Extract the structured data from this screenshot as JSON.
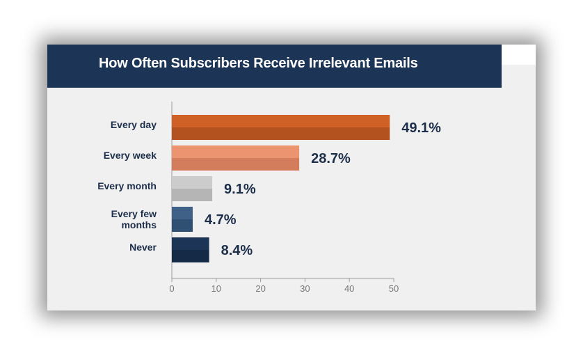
{
  "chart_data": {
    "type": "bar",
    "orientation": "horizontal",
    "title": "How Often Subscribers Receive Irrelevant Emails",
    "categories": [
      {
        "lines": [
          "Every day"
        ]
      },
      {
        "lines": [
          "Every week"
        ]
      },
      {
        "lines": [
          "Every month"
        ]
      },
      {
        "lines": [
          "Every few",
          "months"
        ]
      },
      {
        "lines": [
          "Never"
        ]
      }
    ],
    "values": [
      49.1,
      28.7,
      9.1,
      4.7,
      8.4
    ],
    "value_labels": [
      "49.1%",
      "28.7%",
      "9.1%",
      "4.7%",
      "8.4%"
    ],
    "colors": [
      {
        "top": "#cf6127",
        "bottom": "#b3521f"
      },
      {
        "top": "#ec9370",
        "bottom": "#d37d5d"
      },
      {
        "top": "#cccccc",
        "bottom": "#b5b5b5"
      },
      {
        "top": "#3f6188",
        "bottom": "#2f4f73"
      },
      {
        "top": "#1c3556",
        "bottom": "#152a46"
      }
    ],
    "xlim": [
      0,
      50
    ],
    "xticks": [
      0,
      10,
      20,
      30,
      40,
      50
    ],
    "xlabel": "",
    "ylabel": ""
  }
}
